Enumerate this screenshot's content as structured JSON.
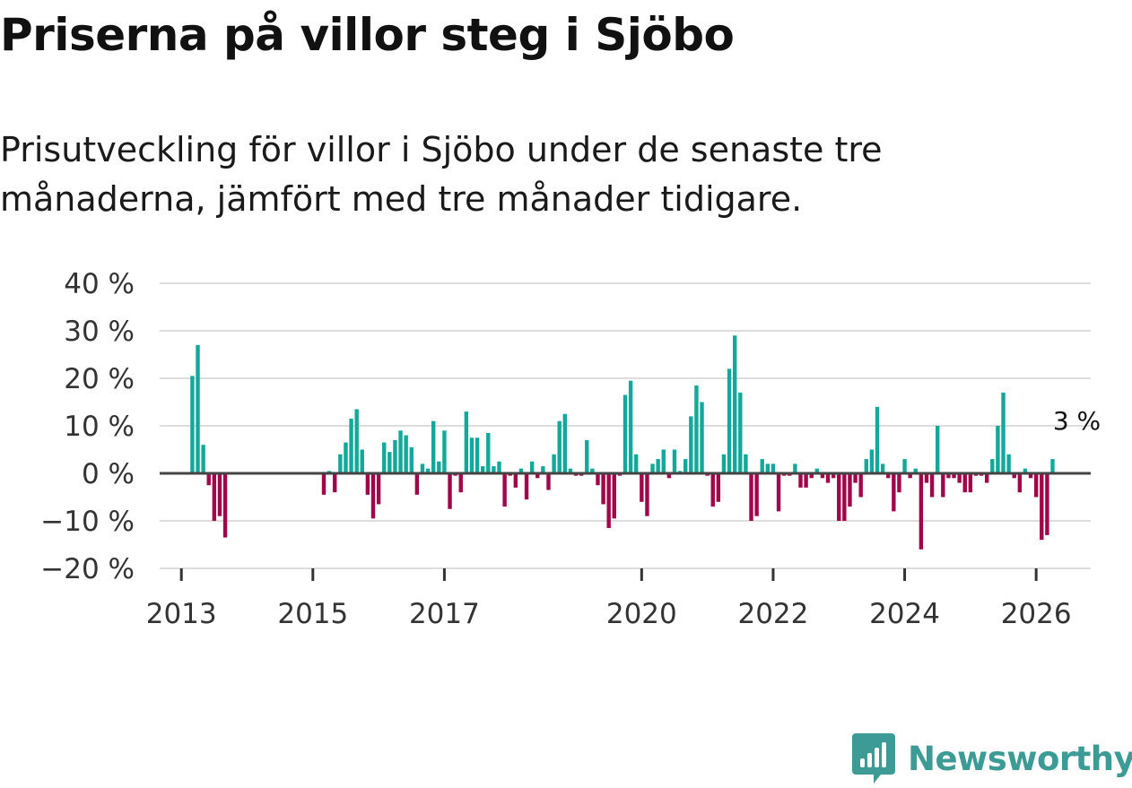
{
  "header": {
    "title": "Priserna på villor steg i Sjöbo",
    "subtitle": "Prisutveckling för villor i Sjöbo under de senaste tre månaderna, jämfört med tre månader tidigare."
  },
  "brand": {
    "name": "Newsworthy"
  },
  "colors": {
    "positive": "#14a89a",
    "negative": "#a0064a",
    "grid": "#dddddd",
    "zero": "#444444",
    "brand": "#3d9b96"
  },
  "chart_data": {
    "type": "bar",
    "title": "Priserna på villor steg i Sjöbo",
    "ylabel": "",
    "xlabel": "",
    "ylim": [
      -20,
      40
    ],
    "y_ticks": [
      40,
      30,
      20,
      10,
      0,
      -10,
      -20
    ],
    "y_tick_labels": [
      "40 %",
      "30 %",
      "20 %",
      "10 %",
      "0 %",
      "−10 %",
      "−20 %"
    ],
    "x_ticks": [
      2013,
      2015,
      2017,
      2020,
      2022,
      2024,
      2026
    ],
    "x_tick_labels": [
      "2013",
      "2015",
      "2017",
      "2020",
      "2022",
      "2024",
      "2026"
    ],
    "x_range": [
      2012.67,
      2026.83
    ],
    "last_label": "3 %",
    "series": [
      {
        "name": "Prisutveckling",
        "start_month": "2013-03",
        "values": [
          20.5,
          27,
          6,
          -2.5,
          -10,
          -9,
          -13.5,
          null,
          null,
          null,
          null,
          null,
          null,
          null,
          null,
          null,
          null,
          null,
          null,
          null,
          null,
          null,
          null,
          null,
          -4.5,
          0.5,
          -4,
          4,
          6.5,
          11.5,
          13.5,
          5,
          -4.5,
          -9.5,
          -6.5,
          6.5,
          4.5,
          7,
          9,
          8,
          5.5,
          -4.5,
          2,
          1,
          11,
          2.5,
          9,
          -7.5,
          -0.5,
          -4,
          13,
          7.5,
          7.5,
          1.5,
          8.5,
          1.5,
          2.5,
          -7,
          -0.5,
          -3,
          1,
          -5.5,
          2.5,
          -1,
          1.5,
          -3.5,
          4,
          11,
          12.5,
          1,
          -0.5,
          -0.5,
          7,
          1,
          -2.5,
          -6.5,
          -11.5,
          -9.5,
          -0.5,
          16.5,
          19.5,
          4,
          -6,
          -9,
          2,
          3,
          5,
          -1,
          5,
          0.5,
          3,
          12,
          18.5,
          15,
          -0.5,
          -7,
          -6,
          4,
          22,
          29,
          17,
          4,
          -10,
          -9,
          3,
          2,
          2,
          -8,
          -0.5,
          -0.5,
          2,
          -3,
          -3,
          -1,
          1,
          -1,
          -2,
          -1,
          -10,
          -10,
          -7,
          -2,
          -5,
          3,
          5,
          14,
          2,
          -1,
          -8,
          -4,
          3,
          -1,
          1,
          -16,
          -2,
          -5,
          10,
          -5,
          -1,
          -1,
          -2,
          -4,
          -4,
          -0.5,
          -0.5,
          -2,
          3,
          10,
          17,
          4,
          -1,
          -4,
          1,
          -1,
          -5,
          -14,
          -13,
          3
        ]
      }
    ]
  }
}
